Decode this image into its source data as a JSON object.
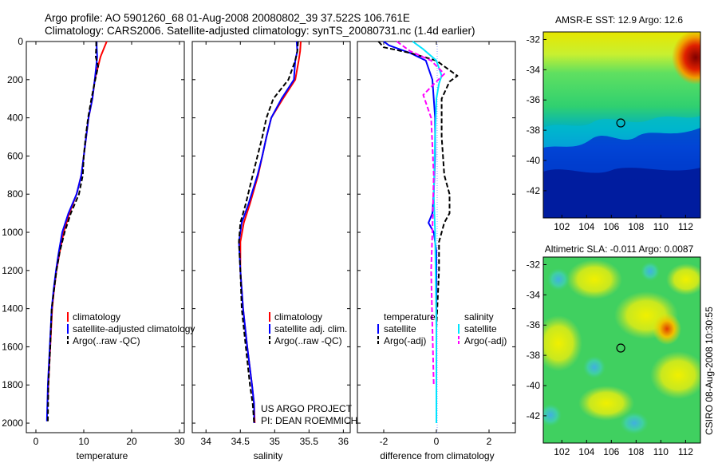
{
  "header": {
    "line1": "Argo profile: AO 5901260_68 01-Aug-2008 20080802_39 37.522S 106.761E",
    "line2": "Climatology: CARS2006. Satellite-adjusted climatology: synTS_20080731.nc (1.4d earlier)"
  },
  "side_label": "CSIRO 08-Aug-2008 10:30:55",
  "project": {
    "line1": "US ARGO PROJECT",
    "line2": "PI: DEAN ROEMMICH"
  },
  "colors": {
    "climatology": "#ff0000",
    "satellite": "#0000ff",
    "argo": "#000000",
    "sat_salinity": "#00e5ff",
    "argo_salinity": "#ff00ff",
    "zero_line": "#8899ff"
  },
  "chart_data": [
    {
      "type": "line",
      "id": "temperature",
      "xlabel": "temperature",
      "ylabel": "",
      "xlim": [
        -2,
        31
      ],
      "ylim": [
        2050,
        0
      ],
      "xticks": [
        0,
        10,
        20,
        30
      ],
      "yticks": [
        0,
        200,
        400,
        600,
        800,
        1000,
        1200,
        1400,
        1600,
        1800,
        2000
      ],
      "legend": {
        "position": "lower-right",
        "entries": [
          {
            "label": "climatology",
            "color": "#ff0000",
            "dash": false
          },
          {
            "label": "satellite-adjusted climatology",
            "color": "#0000ff",
            "dash": false
          },
          {
            "label": "Argo(..raw -QC)",
            "color": "#000000",
            "dash": true
          }
        ]
      },
      "series": [
        {
          "name": "climatology",
          "color": "#ff0000",
          "dash": false,
          "x": [
            14.8,
            14.3,
            13.5,
            13.0,
            12.3,
            11.8,
            11.0,
            10.5,
            10.0,
            9.5,
            8.5,
            7.0,
            5.8,
            5.0,
            4.3,
            3.8,
            3.4,
            3.0,
            2.6,
            2.5
          ],
          "y": [
            0,
            30,
            80,
            130,
            200,
            300,
            400,
            500,
            600,
            700,
            800,
            900,
            1000,
            1100,
            1200,
            1300,
            1400,
            1600,
            1800,
            1880
          ]
        },
        {
          "name": "satellite-adjusted climatology",
          "color": "#0000ff",
          "dash": false,
          "x": [
            12.7,
            12.7,
            12.8,
            12.6,
            12.3,
            11.8,
            11.0,
            10.5,
            10.0,
            9.5,
            8.5,
            6.8,
            5.5,
            4.8,
            4.2,
            3.7,
            3.3,
            2.9,
            2.5,
            2.4,
            2.3
          ],
          "y": [
            0,
            30,
            80,
            130,
            200,
            300,
            400,
            500,
            600,
            700,
            800,
            900,
            1000,
            1100,
            1200,
            1300,
            1400,
            1600,
            1800,
            1900,
            1990
          ]
        },
        {
          "name": "Argo(..raw -QC)",
          "color": "#000000",
          "dash": true,
          "x": [
            12.6,
            12.6,
            12.5,
            13.0,
            12.4,
            11.6,
            10.9,
            10.4,
            10.0,
            9.8,
            9.0,
            7.3,
            6.0,
            5.0,
            4.3,
            3.8,
            3.3,
            3.0,
            2.6,
            2.5
          ],
          "y": [
            0,
            30,
            80,
            130,
            200,
            300,
            400,
            500,
            600,
            700,
            800,
            900,
            1000,
            1100,
            1200,
            1300,
            1400,
            1600,
            1800,
            1990
          ]
        }
      ]
    },
    {
      "type": "line",
      "id": "salinity",
      "xlabel": "salinity",
      "ylabel": "",
      "xlim": [
        33.8,
        36.1
      ],
      "ylim": [
        2050,
        0
      ],
      "xticks": [
        34,
        34.5,
        35,
        35.5,
        36
      ],
      "legend": {
        "position": "lower-right",
        "entries": [
          {
            "label": "climatology",
            "color": "#ff0000",
            "dash": false
          },
          {
            "label": "satellite adj. clim.",
            "color": "#0000ff",
            "dash": false
          },
          {
            "label": "Argo(..raw -QC)",
            "color": "#000000",
            "dash": true
          }
        ]
      },
      "series": [
        {
          "name": "climatology",
          "color": "#ff0000",
          "dash": false,
          "x": [
            35.38,
            35.37,
            35.35,
            35.3,
            35.12,
            34.95,
            34.88,
            34.82,
            34.76,
            34.64,
            34.55,
            34.5,
            34.5,
            34.54,
            34.6,
            34.67,
            34.7,
            34.71
          ],
          "y": [
            0,
            50,
            100,
            200,
            300,
            400,
            500,
            600,
            700,
            850,
            950,
            1050,
            1200,
            1400,
            1600,
            1800,
            1900,
            2000
          ]
        },
        {
          "name": "satellite adj. clim.",
          "color": "#0000ff",
          "dash": false,
          "x": [
            35.32,
            35.33,
            35.3,
            35.28,
            35.1,
            34.95,
            34.88,
            34.82,
            34.75,
            34.62,
            34.52,
            34.48,
            34.5,
            34.54,
            34.6,
            34.67,
            34.7,
            34.7
          ],
          "y": [
            0,
            50,
            100,
            200,
            300,
            400,
            500,
            600,
            700,
            850,
            950,
            1050,
            1200,
            1400,
            1600,
            1800,
            1900,
            2000
          ]
        },
        {
          "name": "Argo(..raw -QC)",
          "color": "#000000",
          "dash": true,
          "x": [
            35.34,
            35.33,
            35.3,
            35.2,
            34.98,
            34.88,
            34.82,
            34.75,
            34.68,
            34.58,
            34.5,
            34.48,
            34.5,
            34.52,
            34.58,
            34.64,
            34.68,
            34.7
          ],
          "y": [
            0,
            50,
            100,
            200,
            300,
            400,
            500,
            600,
            700,
            850,
            950,
            1050,
            1200,
            1400,
            1600,
            1800,
            1900,
            2000
          ]
        }
      ]
    },
    {
      "type": "line",
      "id": "difference",
      "xlabel": "difference from climatology",
      "ylabel": "",
      "xlim": [
        -3,
        3
      ],
      "ylim": [
        2050,
        0
      ],
      "xticks": [
        -2,
        0,
        2
      ],
      "legend": {
        "position": "lower-right",
        "columns": [
          {
            "heading": "temperature",
            "entries": [
              {
                "label": "satellite",
                "color": "#0000ff",
                "dash": false
              },
              {
                "label": "Argo(-adj)",
                "color": "#000000",
                "dash": true
              }
            ]
          },
          {
            "heading": "salinity",
            "entries": [
              {
                "label": "satellite",
                "color": "#00e5ff",
                "dash": false
              },
              {
                "label": "Argo(-adj)",
                "color": "#ff00ff",
                "dash": true
              }
            ]
          }
        ]
      },
      "series": [
        {
          "name": "temperature satellite",
          "color": "#0000ff",
          "dash": false,
          "x": [
            -2.0,
            -1.8,
            -1.0,
            -0.4,
            -0.15,
            -0.1,
            -0.05,
            -0.05,
            -0.1,
            -0.15,
            -0.3,
            -0.1,
            0.0,
            0.0,
            0.0
          ],
          "y": [
            0,
            20,
            60,
            100,
            200,
            300,
            400,
            600,
            800,
            900,
            950,
            1000,
            1100,
            1500,
            2000
          ]
        },
        {
          "name": "temperature Argo(-adj)",
          "color": "#000000",
          "dash": true,
          "x": [
            -2.2,
            -2.0,
            -1.0,
            0.0,
            0.5,
            0.8,
            0.5,
            0.2,
            0.2,
            0.3,
            0.5,
            0.5,
            0.3,
            0.1,
            0.1,
            0.0
          ],
          "y": [
            0,
            30,
            60,
            100,
            150,
            180,
            210,
            300,
            500,
            700,
            800,
            900,
            950,
            1050,
            1200,
            1500
          ]
        },
        {
          "name": "salinity satellite",
          "color": "#00e5ff",
          "dash": false,
          "x": [
            -0.9,
            -0.5,
            0.0,
            0.2,
            0.1,
            0.0,
            -0.05,
            -0.1,
            -0.05,
            0.0,
            0.0
          ],
          "y": [
            0,
            40,
            100,
            180,
            220,
            300,
            500,
            800,
            1000,
            1500,
            2000
          ]
        },
        {
          "name": "salinity Argo(-adj)",
          "color": "#ff00ff",
          "dash": true,
          "x": [
            -1.5,
            -1.0,
            -0.2,
            0.3,
            0.0,
            -0.5,
            -0.2,
            -0.1,
            -0.15,
            -0.2,
            -0.15,
            -0.1
          ],
          "y": [
            0,
            50,
            100,
            170,
            210,
            280,
            400,
            700,
            1000,
            1200,
            1500,
            1800
          ]
        }
      ]
    },
    {
      "type": "heatmap",
      "id": "sst_map",
      "title": "AMSR-E SST: 12.9 Argo: 12.6",
      "xlim": [
        100.5,
        113.2
      ],
      "ylim": [
        -43.8,
        -31.5
      ],
      "xticks": [
        102,
        104,
        106,
        108,
        110,
        112
      ],
      "yticks": [
        -32,
        -34,
        -36,
        -38,
        -40,
        -42
      ],
      "marker": {
        "lon": 106.76,
        "lat": -37.52
      }
    },
    {
      "type": "heatmap",
      "id": "sla_map",
      "title": "Altimetric SLA: -0.011 Argo: 0.0087",
      "xlim": [
        100.5,
        113.2
      ],
      "ylim": [
        -43.8,
        -31.5
      ],
      "xticks": [
        102,
        104,
        106,
        108,
        110,
        112
      ],
      "yticks": [
        -32,
        -34,
        -36,
        -38,
        -40,
        -42
      ],
      "marker": {
        "lon": 106.76,
        "lat": -37.52
      }
    }
  ]
}
